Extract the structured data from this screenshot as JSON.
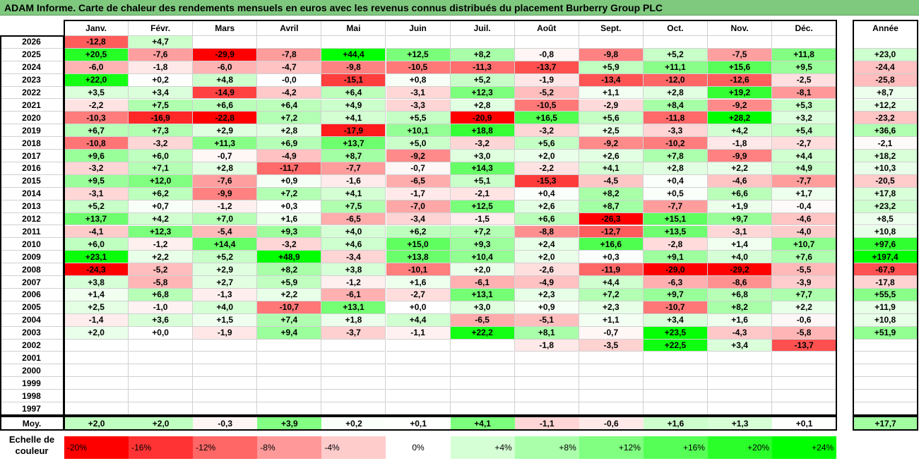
{
  "title": "ADAM Informe. Carte de chaleur des rendements mensuels en euros avec les revenus connus distribués du placement Burberry Group PLC",
  "months": [
    "Janv.",
    "Févr.",
    "Mars",
    "Avril",
    "Mai",
    "Juin",
    "Juil.",
    "Août",
    "Sept.",
    "Oct.",
    "Nov.",
    "Déc."
  ],
  "annual_header": "Année",
  "avg_label": "Moy.",
  "scale_label_line1": "Echelle de",
  "scale_label_line2": "couleur",
  "colors": {
    "neg": "#ff0000",
    "zero": "#ffffff",
    "pos": "#00ff00",
    "title_bg": "#7fc97f"
  },
  "chart_data": {
    "type": "heatmap",
    "title": "ADAM Informe. Carte de chaleur des rendements mensuels en euros avec les revenus connus distribués du placement Burberry Group PLC",
    "columns": [
      "Janv.",
      "Févr.",
      "Mars",
      "Avril",
      "Mai",
      "Juin",
      "Juil.",
      "Août",
      "Sept.",
      "Oct.",
      "Nov.",
      "Déc."
    ],
    "rows": [
      {
        "year": "2026",
        "values": [
          "-12,8",
          "+4,7",
          null,
          null,
          null,
          null,
          null,
          null,
          null,
          null,
          null,
          null
        ],
        "annual": null
      },
      {
        "year": "2025",
        "values": [
          "+20,5",
          "-7,6",
          "-29,9",
          "-7,8",
          "+44,4",
          "+12,5",
          "+8,2",
          "-0,8",
          "-9,8",
          "+5,2",
          "-7,5",
          "+11,8"
        ],
        "annual": "+23,0"
      },
      {
        "year": "2024",
        "values": [
          "-6,0",
          "-1,8",
          "-6,0",
          "-4,7",
          "-9,8",
          "-10,5",
          "-11,3",
          "-13,7",
          "+5,9",
          "+11,1",
          "+15,6",
          "+9,5"
        ],
        "annual": "-24,4"
      },
      {
        "year": "2023",
        "values": [
          "+22,0",
          "+0,2",
          "+4,8",
          "-0,0",
          "-15,1",
          "+0,8",
          "+5,2",
          "-1,9",
          "-13,4",
          "-12,0",
          "-12,6",
          "-2,5"
        ],
        "annual": "-25,8"
      },
      {
        "year": "2022",
        "values": [
          "+3,5",
          "+3,4",
          "-14,9",
          "-4,2",
          "+6,4",
          "-3,1",
          "+12,3",
          "-5,2",
          "+1,1",
          "+2,8",
          "+19,2",
          "-8,1"
        ],
        "annual": "+8,7"
      },
      {
        "year": "2021",
        "values": [
          "-2,2",
          "+7,5",
          "+6,6",
          "+6,4",
          "+4,9",
          "-3,3",
          "+2,8",
          "-10,5",
          "-2,9",
          "+8,4",
          "-9,2",
          "+5,3"
        ],
        "annual": "+12,2"
      },
      {
        "year": "2020",
        "values": [
          "-10,3",
          "-16,9",
          "-22,8",
          "+7,2",
          "+4,1",
          "+5,5",
          "-20,9",
          "+16,5",
          "+5,6",
          "-11,8",
          "+28,2",
          "+3,2"
        ],
        "annual": "-23,2"
      },
      {
        "year": "2019",
        "values": [
          "+6,7",
          "+7,3",
          "+2,9",
          "+2,8",
          "-17,9",
          "+10,1",
          "+18,8",
          "-3,2",
          "+2,5",
          "-3,3",
          "+4,2",
          "+5,4"
        ],
        "annual": "+36,6"
      },
      {
        "year": "2018",
        "values": [
          "-10,8",
          "-3,2",
          "+11,3",
          "+6,9",
          "+13,7",
          "+5,0",
          "-3,2",
          "+5,6",
          "-9,2",
          "-10,2",
          "-1,8",
          "-2,7"
        ],
        "annual": "-2,1"
      },
      {
        "year": "2017",
        "values": [
          "+9,6",
          "+6,0",
          "-0,7",
          "-4,9",
          "+8,7",
          "-9,2",
          "+3,0",
          "+2,0",
          "+2,6",
          "+7,8",
          "-9,9",
          "+4,4"
        ],
        "annual": "+18,2"
      },
      {
        "year": "2016",
        "values": [
          "-3,2",
          "+7,1",
          "+2,8",
          "-11,7",
          "-7,7",
          "-0,7",
          "+14,3",
          "-2,2",
          "+4,1",
          "+2,8",
          "+2,2",
          "+4,9"
        ],
        "annual": "+10,3"
      },
      {
        "year": "2015",
        "values": [
          "+9,5",
          "+12,0",
          "-7,6",
          "+0,9",
          "-1,6",
          "-6,5",
          "+5,1",
          "-15,3",
          "-4,5",
          "+0,4",
          "-4,6",
          "-7,7"
        ],
        "annual": "-20,5"
      },
      {
        "year": "2014",
        "values": [
          "-3,1",
          "+6,2",
          "-9,9",
          "+7,2",
          "+4,1",
          "-1,7",
          "-2,1",
          "+0,4",
          "+8,2",
          "+0,5",
          "+6,6",
          "+1,7"
        ],
        "annual": "+17,8"
      },
      {
        "year": "2013",
        "values": [
          "+5,2",
          "+0,7",
          "-1,2",
          "+0,3",
          "+7,5",
          "-7,0",
          "+12,5",
          "+2,6",
          "+8,7",
          "-7,7",
          "+1,9",
          "-0,4"
        ],
        "annual": "+23,2"
      },
      {
        "year": "2012",
        "values": [
          "+13,7",
          "+4,2",
          "+7,0",
          "+1,6",
          "-6,5",
          "-3,4",
          "-1,5",
          "+6,6",
          "-26,3",
          "+15,1",
          "+9,7",
          "-4,6"
        ],
        "annual": "+8,5"
      },
      {
        "year": "2011",
        "values": [
          "-4,1",
          "+12,3",
          "-5,4",
          "+9,3",
          "+4,0",
          "+6,2",
          "+7,2",
          "-8,8",
          "-12,7",
          "+13,5",
          "-3,1",
          "-4,0"
        ],
        "annual": "+10,8"
      },
      {
        "year": "2010",
        "values": [
          "+6,0",
          "-1,2",
          "+14,4",
          "-3,2",
          "+4,6",
          "+15,0",
          "+9,3",
          "+2,4",
          "+16,6",
          "-2,8",
          "+1,4",
          "+10,7"
        ],
        "annual": "+97,6"
      },
      {
        "year": "2009",
        "values": [
          "+23,1",
          "+2,2",
          "+5,2",
          "+48,9",
          "-3,4",
          "+13,8",
          "+10,4",
          "+2,0",
          "+0,3",
          "+9,1",
          "+4,0",
          "+7,6"
        ],
        "annual": "+197,4"
      },
      {
        "year": "2008",
        "values": [
          "-24,3",
          "-5,2",
          "+2,9",
          "+8,2",
          "+3,8",
          "-10,1",
          "+2,0",
          "-2,6",
          "-11,9",
          "-29,0",
          "-29,2",
          "-5,5"
        ],
        "annual": "-67,9"
      },
      {
        "year": "2007",
        "values": [
          "+3,8",
          "-5,8",
          "+2,7",
          "+5,9",
          "-1,2",
          "+1,6",
          "-6,1",
          "-4,9",
          "+4,4",
          "-6,3",
          "-8,6",
          "-3,9"
        ],
        "annual": "-17,8"
      },
      {
        "year": "2006",
        "values": [
          "+1,4",
          "+6,8",
          "-1,3",
          "+2,2",
          "-6,1",
          "-2,7",
          "+13,1",
          "+2,3",
          "+7,2",
          "+9,7",
          "+6,8",
          "+7,7"
        ],
        "annual": "+55,5"
      },
      {
        "year": "2005",
        "values": [
          "+2,5",
          "-1,0",
          "+4,0",
          "-10,7",
          "+13,1",
          "+0,0",
          "+3,0",
          "+0,9",
          "+2,3",
          "-10,7",
          "+8,2",
          "+2,2"
        ],
        "annual": "+11,9"
      },
      {
        "year": "2004",
        "values": [
          "-1,4",
          "+3,6",
          "+1,5",
          "+7,4",
          "+1,8",
          "+4,4",
          "-6,5",
          "-5,1",
          "+1,1",
          "+3,4",
          "+1,6",
          "-0,6"
        ],
        "annual": "+10,8"
      },
      {
        "year": "2003",
        "values": [
          "+2,0",
          "+0,0",
          "-1,9",
          "+9,4",
          "-3,7",
          "-1,1",
          "+22,2",
          "+8,1",
          "-0,7",
          "+23,5",
          "-4,3",
          "-5,8"
        ],
        "annual": "+51,9"
      },
      {
        "year": "2002",
        "values": [
          null,
          null,
          null,
          null,
          null,
          null,
          null,
          "-1,8",
          "-3,5",
          "+22,5",
          "+3,4",
          "-13,7"
        ],
        "annual": null
      },
      {
        "year": "2001",
        "values": [
          null,
          null,
          null,
          null,
          null,
          null,
          null,
          null,
          null,
          null,
          null,
          null
        ],
        "annual": null
      },
      {
        "year": "2000",
        "values": [
          null,
          null,
          null,
          null,
          null,
          null,
          null,
          null,
          null,
          null,
          null,
          null
        ],
        "annual": null
      },
      {
        "year": "1999",
        "values": [
          null,
          null,
          null,
          null,
          null,
          null,
          null,
          null,
          null,
          null,
          null,
          null
        ],
        "annual": null
      },
      {
        "year": "1998",
        "values": [
          null,
          null,
          null,
          null,
          null,
          null,
          null,
          null,
          null,
          null,
          null,
          null
        ],
        "annual": null
      },
      {
        "year": "1997",
        "values": [
          null,
          null,
          null,
          null,
          null,
          null,
          null,
          null,
          null,
          null,
          null,
          null
        ],
        "annual": null
      }
    ],
    "average": {
      "label": "Moy.",
      "values": [
        "+2,0",
        "+2,0",
        "-0,3",
        "+3,9",
        "+0,2",
        "+0,1",
        "+4,1",
        "-1,1",
        "-0,6",
        "+1,6",
        "+1,3",
        "+0,1"
      ],
      "annual": "+17,7"
    },
    "color_scale": [
      {
        "label": "-20%",
        "value": -20
      },
      {
        "label": "-16%",
        "value": -16
      },
      {
        "label": "-12%",
        "value": -12
      },
      {
        "label": "-8%",
        "value": -8
      },
      {
        "label": "-4%",
        "value": -4
      },
      {
        "label": "0%",
        "value": 0
      },
      {
        "label": "+4%",
        "value": 4
      },
      {
        "label": "+8%",
        "value": 8
      },
      {
        "label": "+12%",
        "value": 12
      },
      {
        "label": "+16%",
        "value": 16
      },
      {
        "label": "+20%",
        "value": 20
      },
      {
        "label": "+24%",
        "value": 24
      }
    ]
  }
}
